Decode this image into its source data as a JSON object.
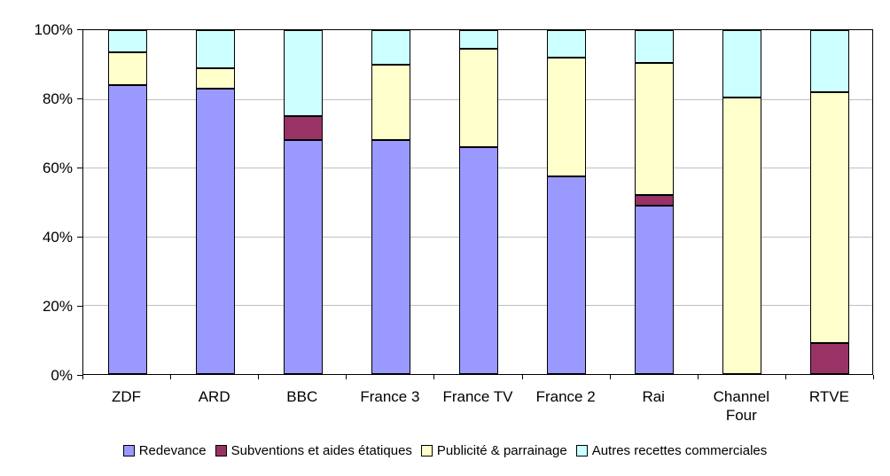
{
  "chart_data": {
    "type": "bar",
    "subtype": "stacked-100-percent",
    "title": "",
    "xlabel": "",
    "ylabel": "",
    "ylim": [
      0,
      100
    ],
    "grid": true,
    "legend_position": "bottom",
    "y_ticks": [
      0,
      20,
      40,
      60,
      80,
      100
    ],
    "y_tick_labels": [
      "0%",
      "20%",
      "40%",
      "60%",
      "80%",
      "100%"
    ],
    "categories": [
      "ZDF",
      "ARD",
      "BBC",
      "France 3",
      "France TV",
      "France 2",
      "Rai",
      "Channel Four",
      "RTVE"
    ],
    "series": [
      {
        "name": "Redevance",
        "color": "#9999FF",
        "values": [
          84,
          83,
          68,
          68,
          66,
          57.5,
          49,
          0,
          0
        ]
      },
      {
        "name": "Subventions et aides étatiques",
        "color": "#993366",
        "values": [
          0,
          0,
          7,
          0,
          0,
          0,
          3,
          0,
          9
        ]
      },
      {
        "name": "Publicité & parrainage",
        "color": "#FFFFCC",
        "values": [
          9.5,
          6,
          0,
          22,
          28.5,
          34.5,
          38.5,
          80.5,
          73
        ]
      },
      {
        "name": "Autres recettes commerciales",
        "color": "#CCFFFF",
        "values": [
          6.5,
          11,
          25,
          10,
          5.5,
          8,
          9.5,
          19.5,
          18
        ]
      }
    ],
    "colors": {
      "border": "#000000",
      "gridline": "#c0c0c0",
      "background": "#ffffff"
    }
  }
}
